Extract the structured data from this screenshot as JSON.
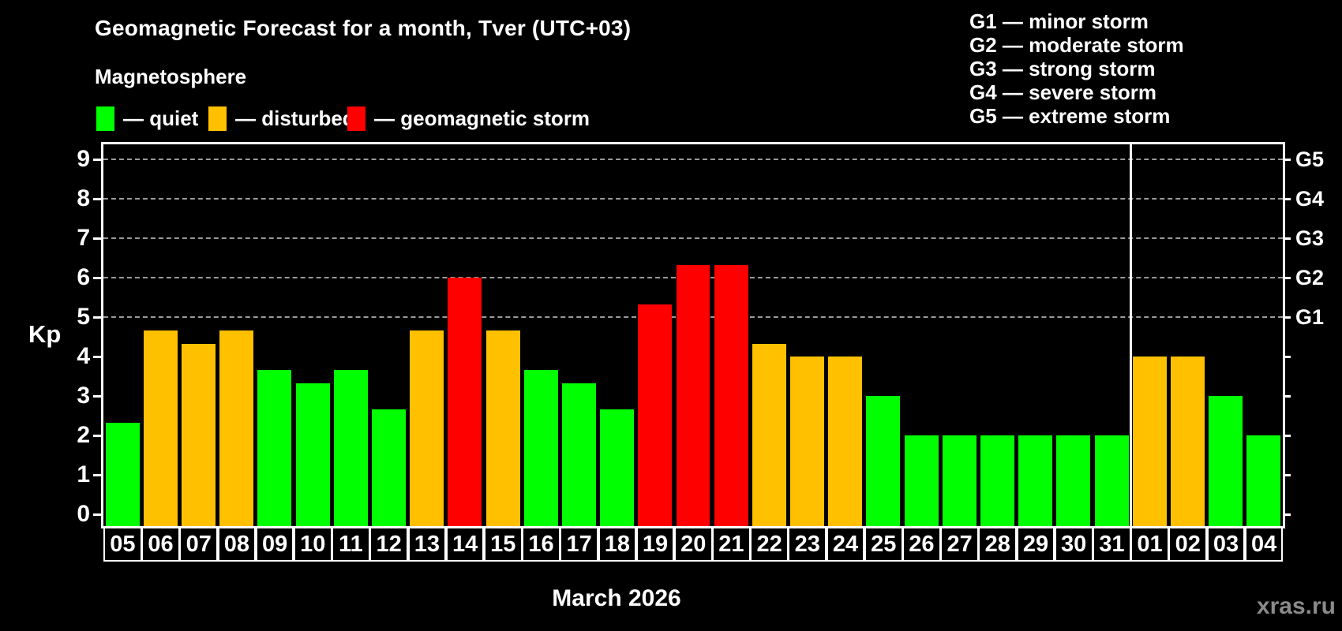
{
  "header": {
    "title": "Geomagnetic Forecast for a month, Tver (UTC+03)",
    "subtitle": "Magnetosphere"
  },
  "legend": {
    "items": [
      {
        "name": "quiet",
        "label": "— quiet",
        "color": "#00ff00"
      },
      {
        "name": "disturbed",
        "label": "— disturbed",
        "color": "#ffc000"
      },
      {
        "name": "storm",
        "label": "— geomagnetic storm",
        "color": "#ff0000"
      }
    ]
  },
  "g_legend": {
    "lines": [
      "G1 — minor storm",
      "G2 — moderate storm",
      "G3 — strong storm",
      "G4 — severe storm",
      "G5 — extreme storm"
    ]
  },
  "footer": {
    "month_label": "March 2026",
    "watermark": "xras.ru"
  },
  "chart_data": {
    "type": "bar",
    "title": "Geomagnetic Forecast for a month, Tver (UTC+03)",
    "ylabel": "Kp",
    "xlabel": "March 2026",
    "ylim": [
      0,
      9
    ],
    "yticks": [
      0,
      1,
      2,
      3,
      4,
      5,
      6,
      7,
      8,
      9
    ],
    "grid_levels": [
      5,
      6,
      7,
      8,
      9
    ],
    "grid_style": "dashed",
    "legend_position": "top",
    "right_axis_labels": [
      {
        "label": "G1",
        "kp": 5
      },
      {
        "label": "G2",
        "kp": 6
      },
      {
        "label": "G3",
        "kp": 7
      },
      {
        "label": "G4",
        "kp": 8
      },
      {
        "label": "G5",
        "kp": 9
      }
    ],
    "status_colors": {
      "quiet": "#00ff00",
      "disturbed": "#ffc000",
      "storm": "#ff0000"
    },
    "month_boundary_before_label": "01",
    "days": [
      {
        "label": "05",
        "kp": 2.33,
        "status": "quiet"
      },
      {
        "label": "06",
        "kp": 4.67,
        "status": "disturbed"
      },
      {
        "label": "07",
        "kp": 4.33,
        "status": "disturbed"
      },
      {
        "label": "08",
        "kp": 4.67,
        "status": "disturbed"
      },
      {
        "label": "09",
        "kp": 3.67,
        "status": "quiet"
      },
      {
        "label": "10",
        "kp": 3.33,
        "status": "quiet"
      },
      {
        "label": "11",
        "kp": 3.67,
        "status": "quiet"
      },
      {
        "label": "12",
        "kp": 2.67,
        "status": "quiet"
      },
      {
        "label": "13",
        "kp": 4.67,
        "status": "disturbed"
      },
      {
        "label": "14",
        "kp": 6.0,
        "status": "storm"
      },
      {
        "label": "15",
        "kp": 4.67,
        "status": "disturbed"
      },
      {
        "label": "16",
        "kp": 3.67,
        "status": "quiet"
      },
      {
        "label": "17",
        "kp": 3.33,
        "status": "quiet"
      },
      {
        "label": "18",
        "kp": 2.67,
        "status": "quiet"
      },
      {
        "label": "19",
        "kp": 5.33,
        "status": "storm"
      },
      {
        "label": "20",
        "kp": 6.33,
        "status": "storm"
      },
      {
        "label": "21",
        "kp": 6.33,
        "status": "storm"
      },
      {
        "label": "22",
        "kp": 4.33,
        "status": "disturbed"
      },
      {
        "label": "23",
        "kp": 4.0,
        "status": "disturbed"
      },
      {
        "label": "24",
        "kp": 4.0,
        "status": "disturbed"
      },
      {
        "label": "25",
        "kp": 3.0,
        "status": "quiet"
      },
      {
        "label": "26",
        "kp": 2.0,
        "status": "quiet"
      },
      {
        "label": "27",
        "kp": 2.0,
        "status": "quiet"
      },
      {
        "label": "28",
        "kp": 2.0,
        "status": "quiet"
      },
      {
        "label": "29",
        "kp": 2.0,
        "status": "quiet"
      },
      {
        "label": "30",
        "kp": 2.0,
        "status": "quiet"
      },
      {
        "label": "31",
        "kp": 2.0,
        "status": "quiet"
      },
      {
        "label": "01",
        "kp": 4.0,
        "status": "disturbed"
      },
      {
        "label": "02",
        "kp": 4.0,
        "status": "disturbed"
      },
      {
        "label": "03",
        "kp": 3.0,
        "status": "quiet"
      },
      {
        "label": "04",
        "kp": 2.0,
        "status": "quiet"
      }
    ]
  }
}
